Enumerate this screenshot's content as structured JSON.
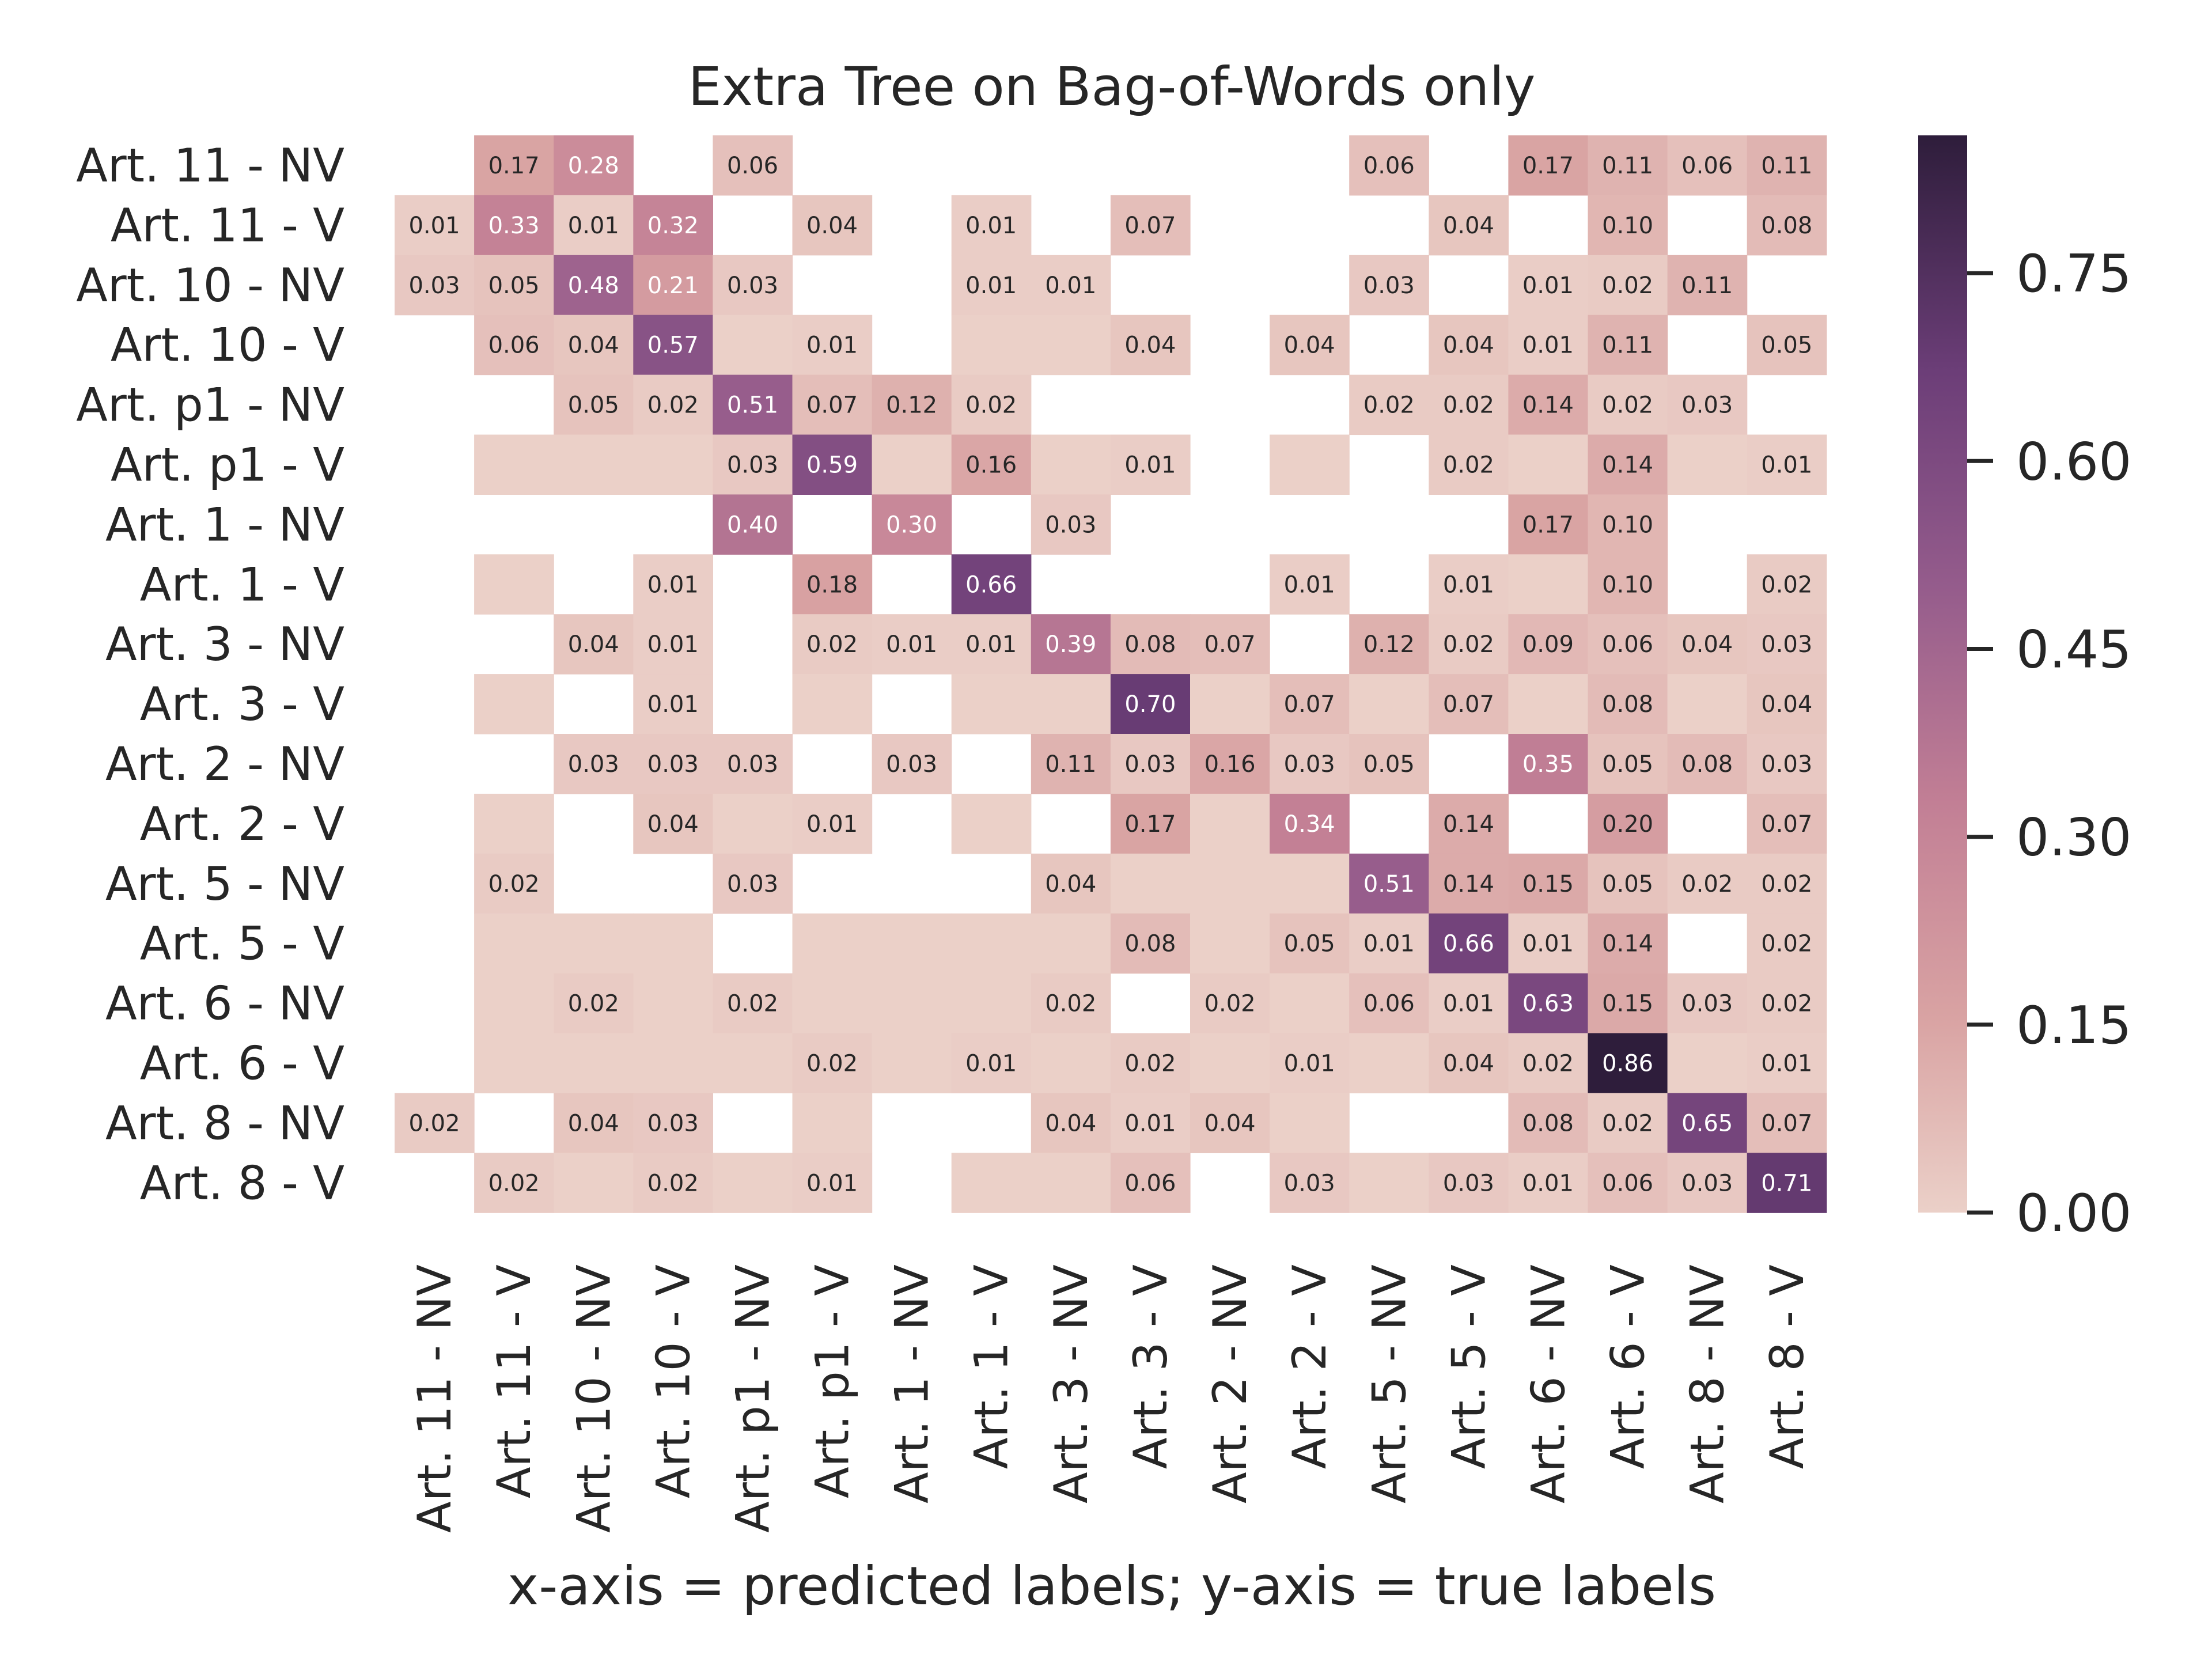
{
  "chart_data": {
    "type": "heatmap",
    "title": "Extra Tree on Bag-of-Words only",
    "axis_label": "x-axis = predicted labels; y-axis = true labels",
    "labels": [
      "Art. 11 - NV",
      "Art. 11 - V",
      "Art. 10 - NV",
      "Art. 10 - V",
      "Art. p1 - NV",
      "Art. p1 - V",
      "Art. 1 - NV",
      "Art. 1 - V",
      "Art. 3 - NV",
      "Art. 3 - V",
      "Art. 2 - NV",
      "Art. 2 - V",
      "Art. 5 - NV",
      "Art. 5 - V",
      "Art. 6 - NV",
      "Art. 6 - V",
      "Art. 8 - NV",
      "Art. 8 - V"
    ],
    "matrix": [
      [
        null,
        0.17,
        0.28,
        null,
        0.06,
        null,
        null,
        null,
        null,
        null,
        null,
        null,
        0.06,
        null,
        0.17,
        0.11,
        0.06,
        0.11
      ],
      [
        0.01,
        0.33,
        0.01,
        0.32,
        null,
        0.04,
        null,
        0.01,
        null,
        0.07,
        null,
        null,
        null,
        0.04,
        null,
        0.1,
        null,
        0.08
      ],
      [
        0.03,
        0.05,
        0.48,
        0.21,
        0.03,
        null,
        null,
        0.01,
        0.01,
        null,
        null,
        null,
        0.03,
        null,
        0.01,
        0.02,
        0.11,
        null
      ],
      [
        null,
        0.06,
        0.04,
        0.57,
        0.0,
        0.01,
        null,
        0.0,
        0.0,
        0.04,
        null,
        0.04,
        null,
        0.04,
        0.01,
        0.11,
        null,
        0.05
      ],
      [
        null,
        null,
        0.05,
        0.02,
        0.51,
        0.07,
        0.12,
        0.02,
        null,
        null,
        null,
        null,
        0.02,
        0.02,
        0.14,
        0.02,
        0.03,
        null
      ],
      [
        null,
        0.0,
        0.0,
        0.0,
        0.03,
        0.59,
        0.0,
        0.16,
        0.0,
        0.01,
        null,
        0.0,
        null,
        0.02,
        0.0,
        0.14,
        0.0,
        0.01
      ],
      [
        null,
        null,
        null,
        null,
        0.4,
        null,
        0.3,
        null,
        0.03,
        null,
        null,
        null,
        null,
        null,
        0.17,
        0.1,
        null,
        null
      ],
      [
        null,
        0.0,
        null,
        0.01,
        null,
        0.18,
        null,
        0.66,
        null,
        null,
        null,
        0.01,
        null,
        0.01,
        0.0,
        0.1,
        null,
        0.02
      ],
      [
        null,
        null,
        0.04,
        0.01,
        null,
        0.02,
        0.01,
        0.01,
        0.39,
        0.08,
        0.07,
        null,
        0.12,
        0.02,
        0.09,
        0.06,
        0.04,
        0.03
      ],
      [
        null,
        0.0,
        null,
        0.01,
        null,
        0.0,
        null,
        0.0,
        0.0,
        0.7,
        0.0,
        0.07,
        0.0,
        0.07,
        0.0,
        0.08,
        0.0,
        0.04
      ],
      [
        null,
        null,
        0.03,
        0.03,
        0.03,
        null,
        0.03,
        null,
        0.11,
        0.03,
        0.16,
        0.03,
        0.05,
        null,
        0.35,
        0.05,
        0.08,
        0.03
      ],
      [
        null,
        0.0,
        null,
        0.04,
        0.0,
        0.01,
        null,
        0.0,
        null,
        0.17,
        0.0,
        0.34,
        null,
        0.14,
        null,
        0.2,
        null,
        0.07
      ],
      [
        null,
        0.02,
        null,
        null,
        0.03,
        null,
        null,
        null,
        0.04,
        0.0,
        0.0,
        0.0,
        0.51,
        0.14,
        0.15,
        0.05,
        0.02,
        0.02
      ],
      [
        null,
        0.0,
        0.0,
        0.0,
        null,
        0.0,
        0.0,
        0.0,
        0.0,
        0.08,
        0.0,
        0.05,
        0.01,
        0.66,
        0.01,
        0.14,
        null,
        0.02
      ],
      [
        null,
        0.0,
        0.02,
        0.0,
        0.02,
        0.0,
        0.0,
        0.0,
        0.02,
        null,
        0.02,
        0.0,
        0.06,
        0.01,
        0.63,
        0.15,
        0.03,
        0.02
      ],
      [
        null,
        0.0,
        0.0,
        0.0,
        0.0,
        0.02,
        0.0,
        0.01,
        0.0,
        0.02,
        0.0,
        0.01,
        0.0,
        0.04,
        0.02,
        0.86,
        0.0,
        0.01
      ],
      [
        0.02,
        null,
        0.04,
        0.03,
        null,
        0.0,
        null,
        null,
        0.04,
        0.01,
        0.04,
        0.0,
        null,
        null,
        0.08,
        0.02,
        0.65,
        0.07
      ],
      [
        null,
        0.02,
        0.0,
        0.02,
        0.0,
        0.01,
        null,
        0.0,
        0.0,
        0.06,
        null,
        0.03,
        0.0,
        0.03,
        0.01,
        0.06,
        0.03,
        0.71
      ]
    ],
    "colorbar": {
      "ticks": [
        "0.00",
        "0.15",
        "0.30",
        "0.45",
        "0.60",
        "0.75"
      ],
      "range": [
        0,
        0.86
      ]
    },
    "colormap": [
      "#ebd0c8",
      "#d9a3a3",
      "#c27f95",
      "#955c8c",
      "#6c3e78",
      "#2e1d3b"
    ]
  }
}
